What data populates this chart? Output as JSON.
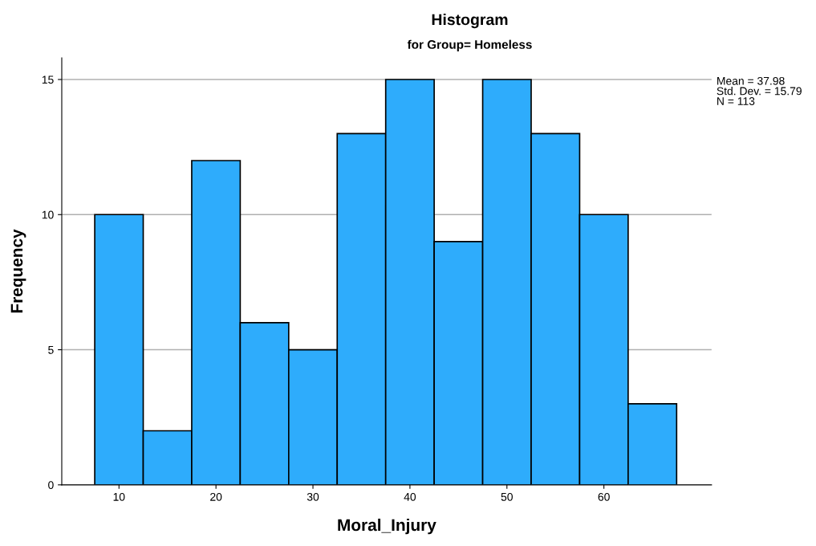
{
  "chart_data": {
    "type": "histogram",
    "title": "Histogram",
    "subtitle": "for Group= Homeless",
    "xlabel": "Moral_Injury",
    "ylabel": "Frequency",
    "bins": [
      7.5,
      12.5,
      17.5,
      22.5,
      27.5,
      32.5,
      37.5,
      42.5,
      47.5,
      52.5,
      57.5,
      62.5,
      67.5
    ],
    "values": [
      10,
      2,
      12,
      6,
      5,
      13,
      15,
      9,
      15,
      13,
      10,
      3
    ],
    "color": "#2eacfc",
    "xlim": [
      4.1,
      71.1
    ],
    "xticks": [
      10,
      20,
      30,
      40,
      50,
      60
    ],
    "ylim": [
      0,
      15.8
    ],
    "yticks": [
      0,
      5,
      10,
      15
    ],
    "grid": "y",
    "legend": false,
    "annotations": [
      "Mean = 37.98",
      "Std. Dev. = 15.79",
      "N = 113"
    ]
  }
}
